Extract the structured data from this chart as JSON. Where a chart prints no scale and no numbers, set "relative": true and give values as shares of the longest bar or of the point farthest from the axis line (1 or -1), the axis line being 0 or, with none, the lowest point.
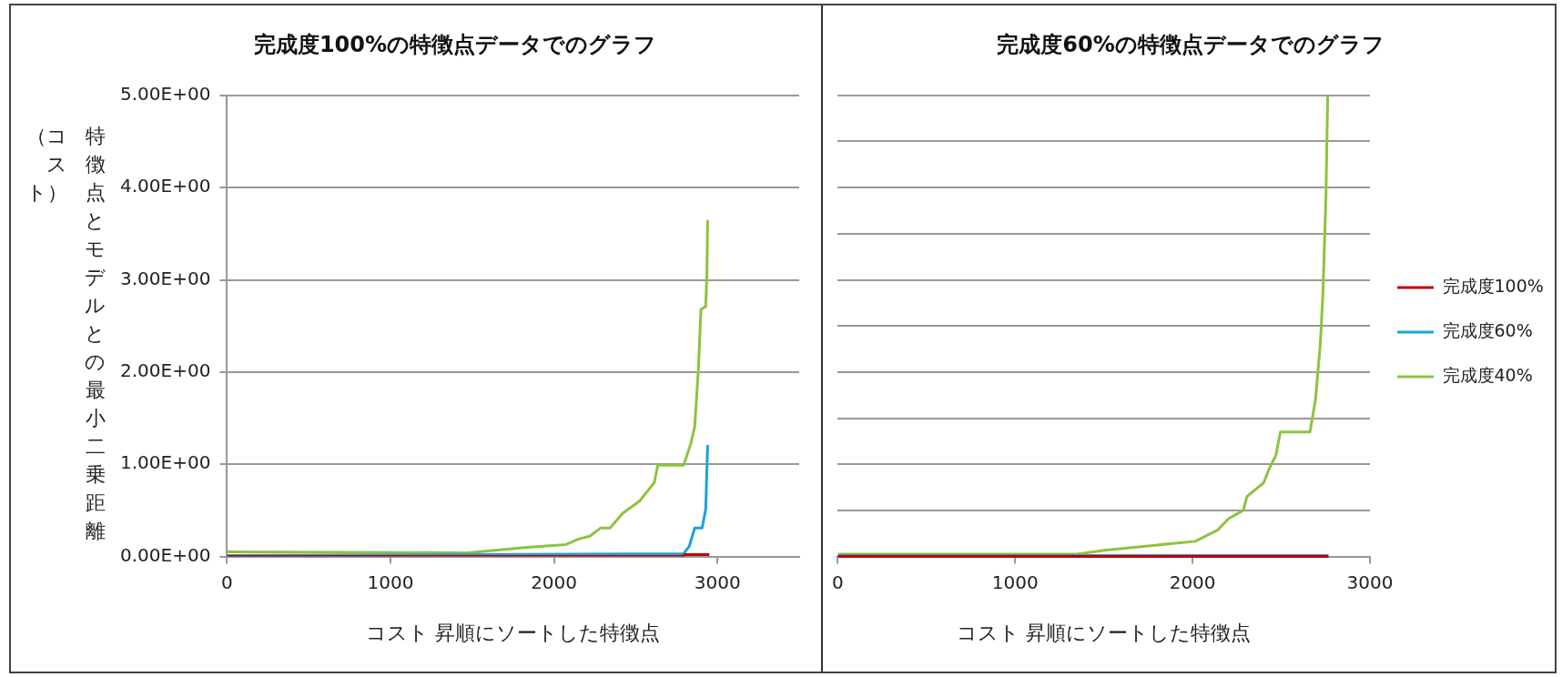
{
  "chart_data": [
    {
      "type": "line",
      "title": "完成度100%の特徴点データでのグラフ",
      "xlabel": "コスト 昇順にソートした特徴点",
      "ylabel": "特徴点とモデルとの最小二乗距離（コスト）",
      "xlim": [
        0,
        3500
      ],
      "xticks": [
        0,
        1000,
        2000,
        3000
      ],
      "ylim": [
        0,
        5
      ],
      "yticks": [
        {
          "value": 0,
          "label": "0.00E+00"
        },
        {
          "value": 1,
          "label": "1.00E+00"
        },
        {
          "value": 2,
          "label": "2.00E+00"
        },
        {
          "value": 3,
          "label": "3.00E+00"
        },
        {
          "value": 4,
          "label": "4.00E+00"
        },
        {
          "value": 5,
          "label": "5.00E+00"
        }
      ],
      "grid": "y",
      "series": [
        {
          "color": "#c00000",
          "x": [
            0,
            2790,
            2800,
            2950
          ],
          "values": [
            0,
            0,
            0.02,
            0.02
          ]
        },
        {
          "color": "#1aa3db",
          "x": [
            0,
            2793,
            2827,
            2861,
            2906,
            2928,
            2940
          ],
          "values": [
            0.01,
            0.03,
            0.11,
            0.31,
            0.31,
            0.51,
            1.21
          ]
        },
        {
          "color": "#8cc43f",
          "x": [
            0,
            1475,
            1836,
            2073,
            2151,
            2219,
            2286,
            2343,
            2421,
            2523,
            2568,
            2613,
            2635,
            2793,
            2838,
            2861,
            2883,
            2899,
            2928,
            2935,
            2940
          ],
          "values": [
            0.05,
            0.04,
            0.1,
            0.13,
            0.19,
            0.22,
            0.31,
            0.31,
            0.47,
            0.6,
            0.7,
            0.8,
            0.99,
            0.99,
            1.23,
            1.41,
            2.02,
            2.68,
            2.71,
            3.04,
            3.65
          ]
        }
      ]
    },
    {
      "type": "line",
      "title": "完成度60%の特徴点データでのグラフ",
      "xlabel": "コスト 昇順にソートした特徴点",
      "xlim": [
        0,
        3000
      ],
      "xticks": [
        0,
        1000,
        2000,
        3000
      ],
      "relative": true,
      "tick_labels": "x",
      "grid": "y",
      "legend": "right",
      "series": [
        {
          "name": "完成度100%",
          "color": "#c00000",
          "x": [
            0,
            2766
          ],
          "values": [
            0,
            0
          ]
        },
        {
          "name": "完成度60%",
          "color": "#1aa3db",
          "x": [
            0,
            2766
          ],
          "values": [
            0.002,
            0.002
          ]
        },
        {
          "name": "完成度40%",
          "color": "#8cc43f",
          "x": [
            0,
            1347,
            1514,
            2015,
            2140,
            2203,
            2286,
            2307,
            2401,
            2432,
            2470,
            2495,
            2662,
            2693,
            2720,
            2735,
            2752,
            2762
          ],
          "values": [
            0.005,
            0.005,
            0.014,
            0.033,
            0.057,
            0.082,
            0.1,
            0.13,
            0.16,
            0.19,
            0.22,
            0.27,
            0.27,
            0.34,
            0.46,
            0.57,
            0.78,
            1
          ]
        }
      ]
    }
  ]
}
